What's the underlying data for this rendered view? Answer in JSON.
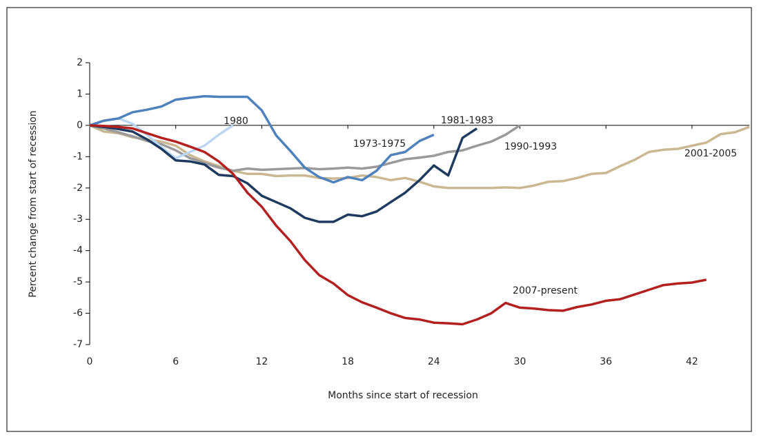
{
  "chart_data": {
    "type": "line",
    "xlabel": "Months since start of recession",
    "ylabel": "Percent change from start of recession",
    "x": [
      0,
      1,
      2,
      3,
      4,
      5,
      6,
      7,
      8,
      9,
      10,
      11,
      12,
      13,
      14,
      15,
      16,
      17,
      18,
      19,
      20,
      21,
      22,
      23,
      24,
      25,
      26,
      27,
      28,
      29,
      30,
      31,
      32,
      33,
      34,
      35,
      36,
      37,
      38,
      39,
      40,
      41,
      42,
      43,
      44,
      45,
      46
    ],
    "xlim": [
      0,
      46
    ],
    "xticks": [
      0,
      6,
      12,
      18,
      24,
      30,
      36,
      42
    ],
    "ylim": [
      -7,
      2
    ],
    "yticks": [
      -7,
      -6,
      -5,
      -4,
      -3,
      -2,
      -1,
      0,
      1,
      2
    ],
    "series": [
      {
        "name": "2001-2005",
        "color": "#c9b892",
        "values": [
          0,
          -0.2,
          -0.25,
          -0.38,
          -0.45,
          -0.52,
          -0.65,
          -0.95,
          -1.15,
          -1.3,
          -1.45,
          -1.55,
          -1.55,
          -1.62,
          -1.6,
          -1.6,
          -1.68,
          -1.7,
          -1.68,
          -1.6,
          -1.65,
          -1.75,
          -1.68,
          -1.8,
          -1.95,
          -2.0,
          -2.0,
          -2.0,
          -2.0,
          -1.98,
          -2.0,
          -1.92,
          -1.8,
          -1.78,
          -1.68,
          -1.55,
          -1.52,
          -1.3,
          -1.1,
          -0.85,
          -0.78,
          -0.75,
          -0.65,
          -0.55,
          -0.28,
          -0.22,
          -0.05
        ]
      },
      {
        "name": "1990-1993",
        "color": "#9a9a9a",
        "values": [
          0,
          -0.1,
          -0.22,
          -0.35,
          -0.5,
          -0.6,
          -0.8,
          -1.05,
          -1.2,
          -1.35,
          -1.45,
          -1.38,
          -1.42,
          -1.4,
          -1.38,
          -1.36,
          -1.4,
          -1.38,
          -1.35,
          -1.38,
          -1.32,
          -1.2,
          -1.08,
          -1.03,
          -0.97,
          -0.85,
          -0.8,
          -0.65,
          -0.52,
          -0.3,
          0,
          null,
          null,
          null,
          null,
          null,
          null,
          null,
          null,
          null,
          null,
          null,
          null,
          null,
          null,
          null,
          null
        ]
      },
      {
        "name": "1980",
        "color": "#bcd6f2",
        "values": [
          0,
          0.15,
          0.22,
          0.05,
          -0.3,
          -0.7,
          -1.05,
          -0.85,
          -0.65,
          -0.3,
          0,
          null,
          null,
          null,
          null,
          null,
          null,
          null,
          null,
          null,
          null,
          null,
          null,
          null,
          null,
          null,
          null,
          null,
          null,
          null,
          null,
          null,
          null,
          null,
          null,
          null,
          null,
          null,
          null,
          null,
          null,
          null,
          null,
          null,
          null,
          null,
          null
        ]
      },
      {
        "name": "1973-1975",
        "color": "#4f81bd",
        "values": [
          0,
          0.15,
          0.22,
          0.42,
          0.5,
          0.6,
          0.82,
          0.88,
          0.93,
          0.91,
          0.91,
          0.91,
          0.48,
          -0.32,
          -0.82,
          -1.35,
          -1.65,
          -1.82,
          -1.65,
          -1.75,
          -1.45,
          -0.95,
          -0.85,
          -0.5,
          -0.3,
          null,
          null,
          null,
          null,
          null,
          null,
          null,
          null,
          null,
          null,
          null,
          null,
          null,
          null,
          null,
          null,
          null,
          null,
          null,
          null,
          null,
          null
        ]
      },
      {
        "name": "1981-1983",
        "color": "#1f3a5f",
        "values": [
          0,
          -0.05,
          -0.12,
          -0.2,
          -0.45,
          -0.75,
          -1.12,
          -1.15,
          -1.25,
          -1.58,
          -1.62,
          -1.85,
          -2.25,
          -2.45,
          -2.65,
          -2.95,
          -3.08,
          -3.08,
          -2.85,
          -2.9,
          -2.75,
          -2.45,
          -2.15,
          -1.75,
          -1.28,
          -1.6,
          -0.4,
          -0.1,
          null,
          null,
          null,
          null,
          null,
          null,
          null,
          null,
          null,
          null,
          null,
          null,
          null,
          null,
          null,
          null,
          null,
          null,
          null
        ]
      },
      {
        "name": "2007-present",
        "color": "#b22020",
        "values": [
          0,
          -0.02,
          -0.05,
          -0.1,
          -0.25,
          -0.4,
          -0.52,
          -0.68,
          -0.85,
          -1.15,
          -1.55,
          -2.15,
          -2.6,
          -3.2,
          -3.7,
          -4.3,
          -4.78,
          -5.05,
          -5.42,
          -5.65,
          -5.82,
          -6.0,
          -6.15,
          -6.2,
          -6.3,
          -6.32,
          -6.35,
          -6.2,
          -6.0,
          -5.67,
          -5.82,
          -5.85,
          -5.9,
          -5.92,
          -5.8,
          -5.72,
          -5.6,
          -5.55,
          -5.4,
          -5.25,
          -5.1,
          -5.05,
          -5.02,
          -4.93,
          null,
          null,
          null
        ]
      }
    ]
  }
}
